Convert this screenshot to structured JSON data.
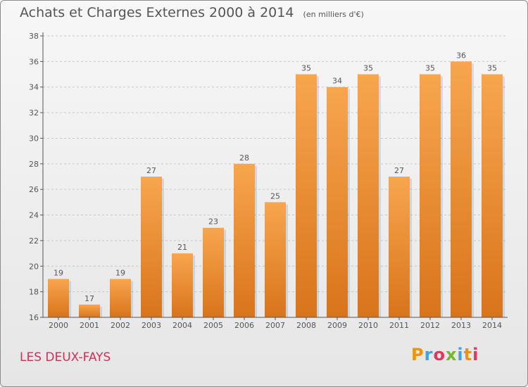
{
  "header": {
    "title": "Achats et Charges Externes 2000 à 2014",
    "subtitle": "(en milliers d'€)"
  },
  "footer": {
    "commune": "LES DEUX-FAYS",
    "brand": "Proxiti"
  },
  "colors": {
    "bar_light": "#f7a64e",
    "bar_dark": "#d9741b",
    "brand_letters": [
      "#f39200",
      "#3da4e0",
      "#e2365f",
      "#76b82a",
      "#3da4e0",
      "#f39200",
      "#e2365f"
    ]
  },
  "chart_data": {
    "type": "bar",
    "title": "Achats et Charges Externes 2000 à 2014",
    "subtitle": "(en milliers d'€)",
    "xlabel": "",
    "ylabel": "",
    "categories": [
      "2000",
      "2001",
      "2002",
      "2003",
      "2004",
      "2005",
      "2006",
      "2007",
      "2008",
      "2009",
      "2010",
      "2011",
      "2012",
      "2013",
      "2014"
    ],
    "values": [
      19,
      17,
      19,
      27,
      21,
      23,
      28,
      25,
      35,
      34,
      35,
      27,
      35,
      36,
      35
    ],
    "data_labels": [
      "19",
      "17",
      "19",
      "27",
      "21",
      "23",
      "28",
      "25",
      "35",
      "34",
      "35",
      "27",
      "35",
      "36",
      "35"
    ],
    "ylim": [
      16,
      38
    ],
    "yticks": [
      16,
      18,
      20,
      22,
      24,
      26,
      28,
      30,
      32,
      34,
      36,
      38
    ],
    "grid": "horizontal-dashed",
    "legend": "none"
  }
}
